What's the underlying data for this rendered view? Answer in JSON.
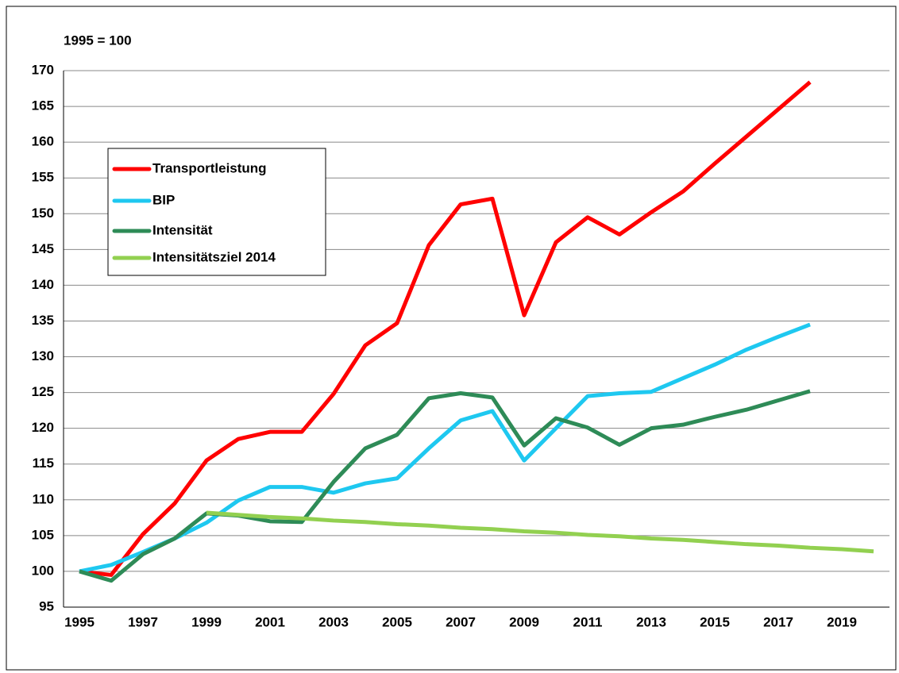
{
  "chart_data": {
    "type": "line",
    "title": "1995 = 100",
    "categories": [
      "1995",
      null,
      "1997",
      null,
      "1999",
      null,
      "2001",
      null,
      "2003",
      null,
      "2005",
      null,
      "2007",
      null,
      "2009",
      null,
      "2011",
      null,
      "2013",
      null,
      "2015",
      null,
      "2017",
      null,
      "2019",
      null
    ],
    "series": [
      {
        "name": "Transportleistung",
        "color": "#ff0000",
        "values": [
          100,
          99.5,
          105.2,
          109.5,
          115.5,
          118.5,
          119.5,
          119.5,
          124.8,
          131.6,
          134.7,
          145.6,
          151.3,
          152.1,
          135.8,
          146,
          149.5,
          147.1,
          150.2,
          153.1,
          157,
          160.8,
          164.6,
          168.4,
          null,
          null
        ]
      },
      {
        "name": "BIP",
        "color": "#1ec8f0",
        "values": [
          100,
          100.9,
          102.7,
          104.6,
          106.8,
          109.9,
          111.8,
          111.8,
          111,
          112.3,
          113,
          117.2,
          121.1,
          122.4,
          115.5,
          120,
          124.5,
          124.9,
          125.1,
          127,
          128.9,
          131,
          132.8,
          134.5,
          null,
          null
        ]
      },
      {
        "name": "Intensität",
        "color": "#2e8b57",
        "values": [
          100,
          98.7,
          102.4,
          104.6,
          108.1,
          107.8,
          107,
          106.9,
          112.5,
          117.2,
          119.1,
          124.2,
          124.9,
          124.3,
          117.6,
          121.4,
          120.1,
          117.7,
          120,
          120.5,
          121.6,
          122.6,
          123.9,
          125.2,
          null,
          null
        ]
      },
      {
        "name": "Intensitätsziel 2014",
        "color": "#92d050",
        "values": [
          null,
          null,
          null,
          null,
          108.2,
          107.9,
          107.6,
          107.4,
          107.1,
          106.9,
          106.6,
          106.4,
          106.1,
          105.9,
          105.6,
          105.4,
          105.1,
          104.9,
          104.6,
          104.4,
          104.1,
          103.8,
          103.6,
          103.3,
          103.1,
          102.8
        ]
      }
    ],
    "ylim": [
      95,
      170
    ],
    "yticks": [
      95,
      100,
      105,
      110,
      115,
      120,
      125,
      130,
      135,
      140,
      145,
      150,
      155,
      160,
      165,
      170
    ],
    "grid": true
  }
}
